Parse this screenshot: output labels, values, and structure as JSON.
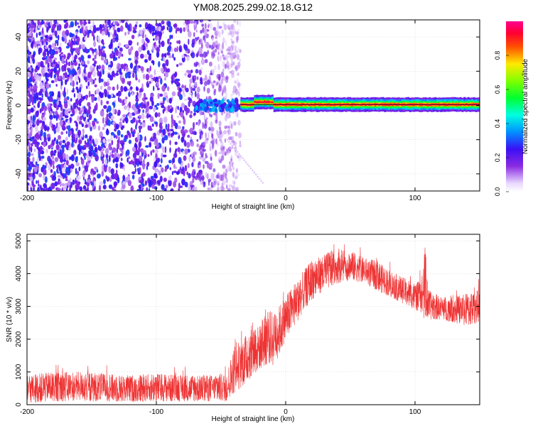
{
  "title": "YM08.2025.299.02.18.G12",
  "colors": {
    "snr_line": "#ee3333",
    "axis": "#000000",
    "grid": "#c8c8c8",
    "tick_label": "#000000"
  },
  "chart_data": [
    {
      "type": "heatmap",
      "title": "YM08.2025.299.02.18.G12",
      "xlabel": "Height of straight line (km)",
      "ylabel": "Frequency (Hz)",
      "xlim": [
        -200,
        150
      ],
      "ylim": [
        -50,
        50
      ],
      "xticks": [
        -200,
        -100,
        0,
        100
      ],
      "yticks": [
        -40,
        -20,
        0,
        20,
        40
      ],
      "grid": true,
      "colorbar": {
        "label": "Normalized spectral amplitude",
        "range": [
          0.0,
          1.0
        ],
        "ticks": [
          0.0,
          0.2,
          0.4,
          0.6,
          0.8
        ],
        "tick_labels": [
          "0.0",
          "0.2",
          "0.4",
          "0.6",
          "0.8"
        ],
        "colormap": "rainbow (white-violet-blue-cyan-green-yellow-red-magenta)"
      },
      "regions": [
        {
          "name": "scattered noise",
          "x_range": [
            -200,
            -50
          ],
          "freq_range": [
            -50,
            50
          ],
          "amplitude": [
            0.05,
            0.3
          ]
        },
        {
          "name": "emerging tone",
          "x_range": [
            -70,
            -35
          ],
          "freq_center": 0,
          "amplitude": [
            0.2,
            0.4
          ]
        },
        {
          "name": "stable tone",
          "x_range": [
            -35,
            150
          ],
          "freq_center": 0.5,
          "amplitude": [
            0.5,
            1.0
          ]
        }
      ]
    },
    {
      "type": "line",
      "xlabel": "Height of straight line (km)",
      "ylabel": "SNR (10 * v/v)",
      "xlim": [
        -200,
        150
      ],
      "ylim": [
        0,
        5200
      ],
      "xticks": [
        -200,
        -100,
        0,
        100
      ],
      "yticks": [
        0,
        1000,
        2000,
        3000,
        4000,
        5000
      ],
      "grid": true,
      "series": [
        {
          "name": "SNR",
          "color": "#ee3333",
          "envelope": {
            "x": [
              -200,
              -180,
              -160,
              -140,
              -120,
              -100,
              -80,
              -60,
              -45,
              -42,
              -38,
              -35,
              -30,
              -25,
              -20,
              -15,
              -10,
              -5,
              0,
              10,
              20,
              30,
              40,
              50,
              60,
              70,
              80,
              90,
              100,
              105,
              108,
              110,
              120,
              130,
              140,
              150
            ],
            "low": [
              50,
              100,
              100,
              100,
              80,
              100,
              100,
              100,
              100,
              300,
              400,
              500,
              700,
              900,
              1100,
              1200,
              1200,
              1500,
              2000,
              2600,
              3200,
              3500,
              3700,
              3800,
              3700,
              3500,
              3300,
              3100,
              2900,
              2800,
              2500,
              2600,
              2600,
              2500,
              2400,
              2500
            ],
            "high": [
              900,
              1000,
              1000,
              950,
              900,
              950,
              900,
              900,
              1000,
              1500,
              2000,
              1800,
              2200,
              2500,
              2400,
              3000,
              2800,
              3000,
              3300,
              3900,
              4400,
              4600,
              4800,
              4700,
              4500,
              4400,
              4100,
              3900,
              3700,
              3800,
              5000,
              3500,
              3300,
              3300,
              3400,
              3500
            ]
          }
        }
      ]
    }
  ]
}
